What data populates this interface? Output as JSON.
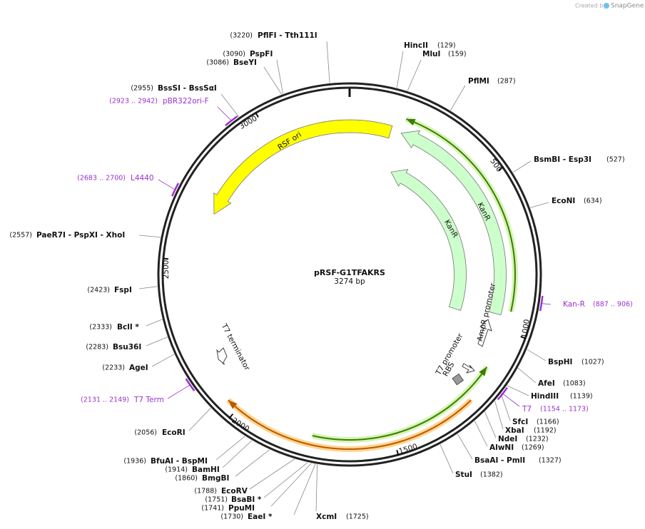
{
  "header": {
    "credit": "Created by",
    "brand": "SnapGene"
  },
  "plasmid": {
    "name": "pRSF-G1TFAKRS",
    "size": "3274 bp",
    "ticks": [
      "500",
      "1000",
      "1500",
      "2000",
      "2500",
      "3000"
    ]
  },
  "enzymes": [
    {
      "label": "HincII",
      "position": "(129)"
    },
    {
      "label": "MluI",
      "position": "(159)"
    },
    {
      "label": "PflMI",
      "position": "(287)"
    },
    {
      "label": "BsmBI  - Esp3I",
      "position": "(527)"
    },
    {
      "label": "EcoNI",
      "position": "(634)"
    },
    {
      "label": "BspHI",
      "position": "(1027)"
    },
    {
      "label": "AfeI",
      "position": "(1083)"
    },
    {
      "label": "HindIII",
      "position": "(1139)"
    },
    {
      "label": "SfcI",
      "position": "(1166)"
    },
    {
      "label": "XbaI",
      "position": "(1192)"
    },
    {
      "label": "NdeI",
      "position": "(1232)"
    },
    {
      "label": "AlwNI",
      "position": "(1269)"
    },
    {
      "label": "BsaAI  - PmlI",
      "position": "(1327)"
    },
    {
      "label": "StuI",
      "position": "(1382)"
    },
    {
      "label": "XcmI",
      "position": "(1725)"
    },
    {
      "label": "PflFI  - Tth111I",
      "position": "(3220)"
    },
    {
      "label": "PspFI",
      "position": "(3090)"
    },
    {
      "label": "BseYI",
      "position": "(3086)"
    },
    {
      "label": "BssSI  - BssSαI",
      "position": "(2955)"
    },
    {
      "label": "PaeR7I  - PspXI  - XhoI",
      "position": "(2557)"
    },
    {
      "label": "FspI",
      "position": "(2423)"
    },
    {
      "label": "BclI *",
      "position": "(2333)"
    },
    {
      "label": "Bsu36I",
      "position": "(2283)"
    },
    {
      "label": "AgeI",
      "position": "(2233)"
    },
    {
      "label": "EcoRI",
      "position": "(2056)"
    },
    {
      "label": "BfuAI  - BspMI",
      "position": "(1936)"
    },
    {
      "label": "BamHI",
      "position": "(1914)"
    },
    {
      "label": "BmgBI",
      "position": "(1860)"
    },
    {
      "label": "EcoRV",
      "position": "(1788)"
    },
    {
      "label": "BsaBI *",
      "position": "(1751)"
    },
    {
      "label": "PpuMI",
      "position": "(1741)"
    },
    {
      "label": "EaeI *",
      "position": "(1730)"
    }
  ],
  "primers": [
    {
      "label": "pBR322ori-F",
      "range": "(2923 .. 2942)"
    },
    {
      "label": "L4440",
      "range": "(2683 .. 2700)"
    },
    {
      "label": "Kan-R",
      "range": "(887 .. 906)"
    },
    {
      "label": "T7",
      "range": "(1154 .. 1173)"
    },
    {
      "label": "T7 Term",
      "range": "(2131 .. 2149)"
    }
  ],
  "features": [
    {
      "label": "RSF ori"
    },
    {
      "label": "KanR"
    },
    {
      "label": "KanR"
    },
    {
      "label": "AmpR promoter"
    },
    {
      "label": "T7 promoter"
    },
    {
      "label": "RBS"
    },
    {
      "label": "T7 terminator"
    }
  ]
}
